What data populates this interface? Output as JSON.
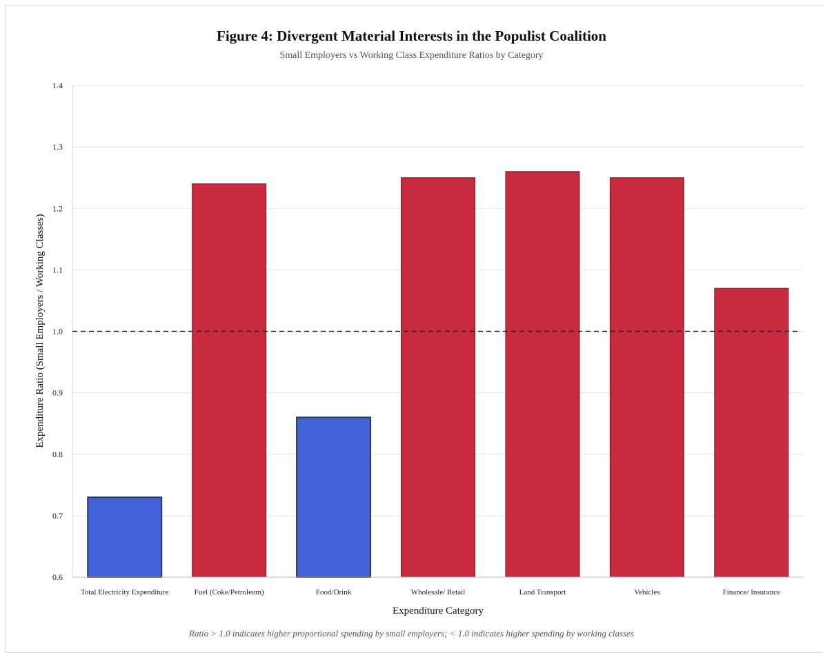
{
  "chart_data": {
    "type": "bar",
    "title": "Figure 4: Divergent Material Interests in the Populist Coalition",
    "subtitle": "Small Employers vs Working Class Expenditure Ratios by Category",
    "xlabel": "Expenditure Category",
    "ylabel": "Expenditure Ratio (Small Employers / Working Classes)",
    "categories": [
      "Total Electricity Expenditure",
      "Fuel (Coke/Petroleum)",
      "Food/Drink",
      "Wholesale/ Retail",
      "Land Transport",
      "Vehicles",
      "Finance/ Insurance"
    ],
    "values": [
      0.73,
      1.24,
      0.86,
      1.25,
      1.26,
      1.25,
      1.07
    ],
    "ylim": [
      0.6,
      1.4
    ],
    "yticks": [
      "0.6",
      "0.7",
      "0.8",
      "0.9",
      "1.0",
      "1.1",
      "1.2",
      "1.3",
      "1.4"
    ],
    "reference_line": 1.0,
    "grid": true,
    "colors": {
      "above": "#c82a3f",
      "below": "#4361d8",
      "above_border": "#7a1a22",
      "below_border": "#2f3a4a"
    },
    "footnote": "Ratio > 1.0 indicates higher proportional spending by small employers; < 1.0 indicates higher spending by working classes"
  }
}
